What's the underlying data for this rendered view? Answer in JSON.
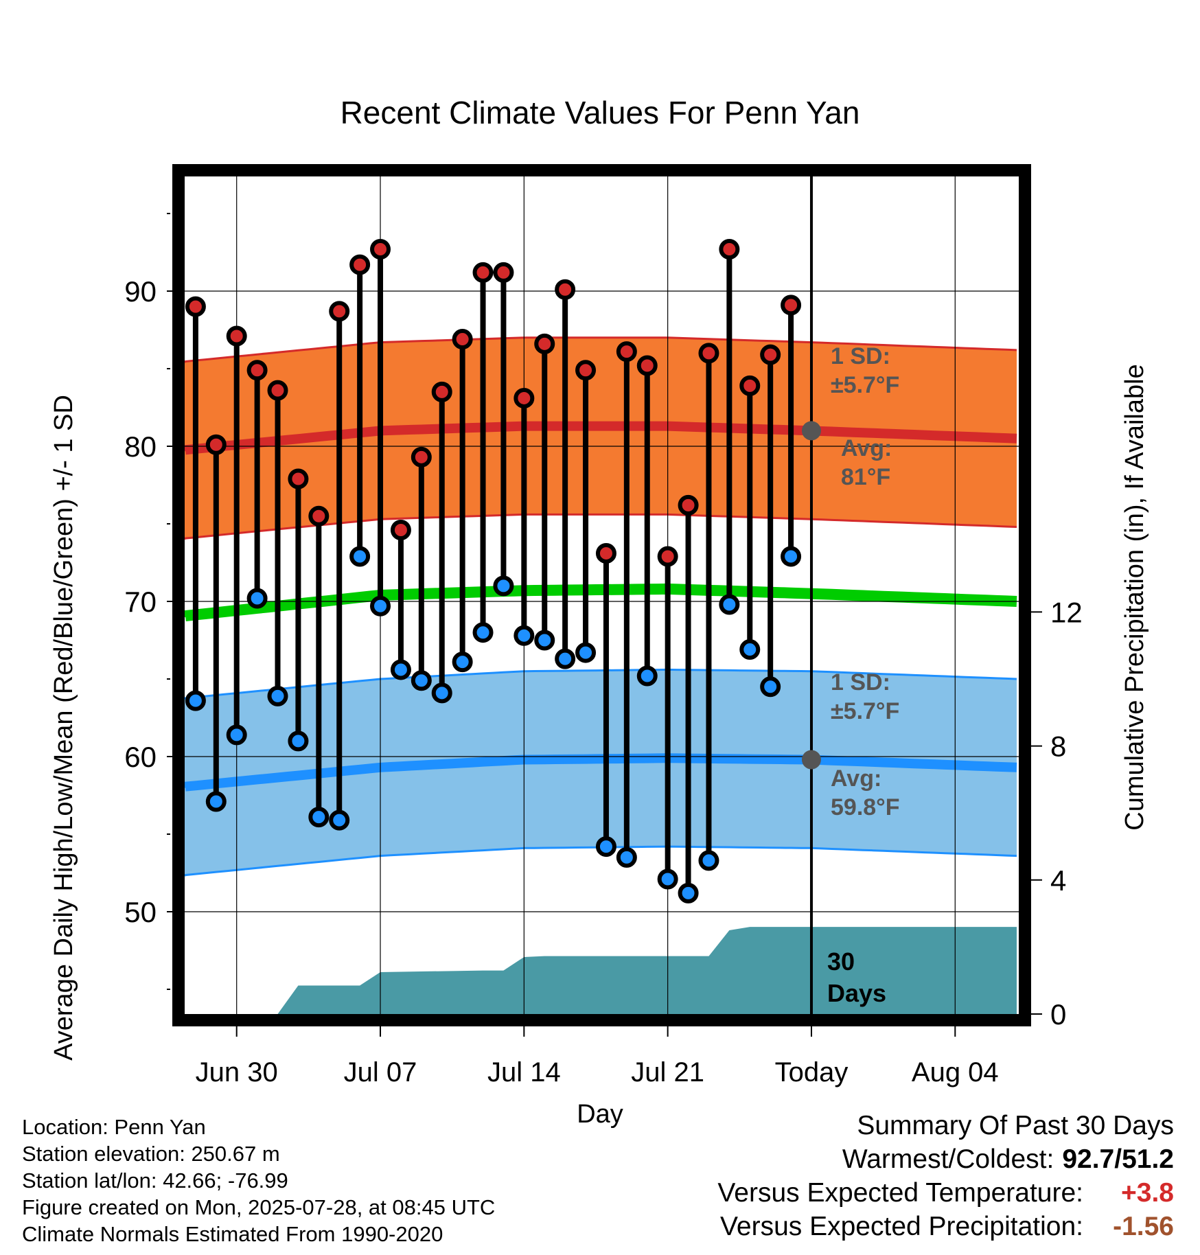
{
  "title": "Recent Climate Values For Penn Yan",
  "x_axis_label": "Day",
  "y_axis_left_label": "Average Daily High/Low/Mean (Red/Blue/Green) +/- 1 SD",
  "y_axis_right_label": "Cumulative Precipitation (in), If Available",
  "colors": {
    "high_band": "#f47a30",
    "high_line": "#d42a2a",
    "low_band": "#85c1e9",
    "low_line": "#1e90ff",
    "mean_line": "#00cc00",
    "precip": "#4a9aa5",
    "high_dot": "#d42a2a",
    "low_dot": "#1e90ff",
    "annotation": "#555555",
    "positive_anomaly": "#d42a2a",
    "negative_anomaly": "#a0522d"
  },
  "annotations": {
    "high_sd_line1": "1 SD:",
    "high_sd_line2": "±5.7°F",
    "high_avg_line1": "Avg:",
    "high_avg_line2": "81°F",
    "low_sd_line1": "1 SD:",
    "low_sd_line2": "±5.7°F",
    "low_avg_line1": "Avg:",
    "low_avg_line2": "59.8°F",
    "precip_line1": "30",
    "precip_line2": "Days"
  },
  "meta": {
    "location": "Location: Penn Yan",
    "elevation": "Station elevation: 250.67 m",
    "latlon": "Station lat/lon: 42.66; -76.99",
    "created": "Figure created on Mon, 2025-07-28, at 08:45 UTC",
    "normals": "Climate Normals Estimated From 1990-2020"
  },
  "summary": {
    "title": "Summary Of Past 30 Days",
    "warmest_label": "Warmest/Coldest:",
    "warmest_value": "92.7/51.2",
    "temp_label": "Versus Expected Temperature:",
    "temp_value": "+3.8",
    "precip_label": "Versus Expected Precipitation:",
    "precip_value": "-1.56"
  },
  "chart_data": {
    "type": "line",
    "x_tick_labels": [
      "Jun 30",
      "Jul 07",
      "Jul 14",
      "Jul 21",
      "Today",
      "Aug 04"
    ],
    "x_tick_days": [
      3,
      10,
      17,
      24,
      31,
      38
    ],
    "today_day": 31,
    "x_range": [
      0,
      41
    ],
    "y_left_range": [
      43.5,
      98
    ],
    "y_left_ticks": [
      50,
      60,
      70,
      80,
      90
    ],
    "y_right_ticks": [
      0,
      4,
      8,
      12
    ],
    "y_right_range": [
      0,
      20.3
    ],
    "grid": true,
    "observations": {
      "days": [
        1,
        2,
        3,
        4,
        5,
        6,
        7,
        8,
        9,
        10,
        11,
        12,
        13,
        14,
        15,
        16,
        17,
        18,
        19,
        20,
        21,
        22,
        23,
        24,
        25,
        26,
        27,
        28,
        29,
        30
      ],
      "high": [
        89.0,
        80.1,
        87.1,
        84.9,
        83.6,
        77.9,
        75.5,
        88.7,
        91.7,
        92.7,
        74.6,
        79.3,
        83.5,
        86.9,
        91.2,
        91.2,
        83.1,
        86.6,
        90.1,
        84.9,
        73.1,
        86.1,
        85.2,
        72.9,
        76.2,
        86.0,
        92.7,
        83.9,
        85.9,
        89.1
      ],
      "low": [
        63.6,
        57.1,
        61.4,
        70.2,
        63.9,
        61.0,
        56.1,
        55.9,
        72.9,
        69.7,
        65.6,
        64.9,
        64.1,
        66.1,
        68.0,
        71.0,
        67.8,
        67.5,
        66.3,
        66.7,
        54.2,
        53.5,
        65.2,
        52.1,
        51.2,
        53.3,
        69.8,
        66.9,
        64.5,
        72.9
      ]
    },
    "normals": {
      "days": [
        0,
        10,
        17,
        24,
        31,
        41
      ],
      "high_mean": [
        79.7,
        81.0,
        81.3,
        81.3,
        81.0,
        80.5
      ],
      "high_sd": 5.7,
      "low_mean": [
        58.0,
        59.3,
        59.8,
        59.9,
        59.8,
        59.3
      ],
      "low_sd": 5.7,
      "mean": [
        69.0,
        70.4,
        70.7,
        70.8,
        70.5,
        70.0
      ]
    },
    "precipitation": {
      "days": [
        0,
        5,
        6,
        9,
        10,
        15,
        16,
        17,
        18,
        26,
        27,
        28,
        31,
        41
      ],
      "cumulative_in": [
        0,
        0,
        0.85,
        0.85,
        1.25,
        1.3,
        1.3,
        1.7,
        1.73,
        1.73,
        2.5,
        2.6,
        2.6,
        2.6
      ]
    }
  }
}
